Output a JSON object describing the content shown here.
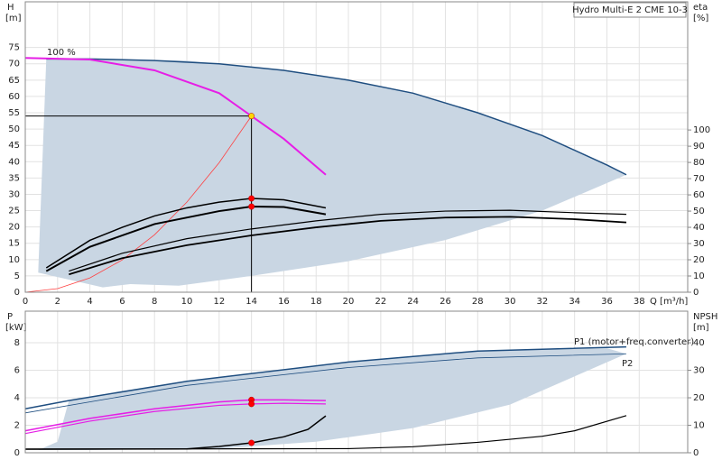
{
  "chart_data": [
    {
      "type": "line",
      "title": "Hydro Multi-E 2 CME 10-3",
      "ylabel": "H",
      "yunit": "[m]",
      "y2label": "eta",
      "y2unit": "[%]",
      "xlabel": "Q [m³/h]",
      "xlim": [
        0,
        41
      ],
      "xticks": [
        0,
        2,
        4,
        6,
        8,
        10,
        12,
        14,
        16,
        18,
        20,
        22,
        24,
        26,
        28,
        30,
        32,
        34,
        36,
        38
      ],
      "ylim": [
        0,
        89
      ],
      "yticks": [
        0,
        5,
        10,
        15,
        20,
        25,
        30,
        35,
        40,
        45,
        50,
        55,
        60,
        65,
        70,
        75
      ],
      "y2lim": [
        0,
        179
      ],
      "y2ticks": [
        0,
        10,
        20,
        30,
        40,
        50,
        60,
        70,
        80,
        90,
        100
      ],
      "grid": true,
      "annotations": [
        "100 %"
      ],
      "series": [
        {
          "type": "area",
          "color": "#c9d6e3",
          "x": [
            1.3,
            4,
            10,
            16,
            20,
            24,
            28,
            32,
            36,
            37.2,
            32,
            26,
            20,
            14,
            9.5,
            6.5,
            4.8,
            0.8
          ],
          "values": [
            71.5,
            71.5,
            71,
            68,
            65,
            61,
            55,
            48,
            39,
            36,
            25,
            16,
            9.5,
            5,
            2,
            2.5,
            1.5,
            6
          ]
        },
        {
          "type": "line",
          "color": "#1f4e80",
          "width": 1.5,
          "x": [
            1.3,
            4,
            8,
            12,
            16,
            20,
            24,
            28,
            32,
            36,
            37.2
          ],
          "values": [
            71.5,
            71.5,
            71,
            70,
            68,
            65,
            61,
            55,
            48,
            39,
            36
          ]
        },
        {
          "type": "line",
          "color": "#ff4040",
          "width": 0.8,
          "x": [
            0,
            2,
            4,
            6,
            8,
            10,
            12,
            14
          ],
          "values": [
            0,
            1.1,
            4.4,
            9.9,
            17.6,
            27.6,
            39.7,
            54
          ]
        },
        {
          "type": "line",
          "color": "#e61ee6",
          "width": 2,
          "x": [
            0,
            4,
            8,
            12,
            14,
            16,
            18.6
          ],
          "values": [
            71.8,
            71.3,
            68,
            61,
            54,
            47,
            36
          ]
        },
        {
          "type": "line",
          "color": "#000000",
          "width": 1,
          "x": [
            0,
            14,
            14
          ],
          "values": [
            54,
            54,
            0
          ]
        },
        {
          "type": "line",
          "color": "#000000",
          "width": 1.5,
          "axis": "y2",
          "x": [
            1.3,
            4,
            6,
            8,
            10,
            12,
            14,
            16,
            18.6
          ],
          "values": [
            15,
            32,
            40,
            47,
            52,
            55.5,
            57.8,
            57,
            52
          ]
        },
        {
          "type": "line",
          "color": "#000000",
          "width": 2,
          "axis": "y2",
          "x": [
            1.3,
            4,
            8,
            12,
            14,
            16,
            18.6
          ],
          "values": [
            13,
            28,
            42,
            50,
            52.8,
            52.5,
            48
          ]
        },
        {
          "type": "line",
          "color": "#000000",
          "width": 1.2,
          "axis": "y2",
          "x": [
            2.7,
            6,
            10,
            14,
            18,
            22,
            26,
            30,
            34,
            37.2
          ],
          "values": [
            13,
            24,
            33,
            39,
            44,
            48,
            50,
            50.5,
            49,
            48
          ]
        },
        {
          "type": "line",
          "color": "#000000",
          "width": 1.8,
          "axis": "y2",
          "x": [
            2.7,
            6,
            10,
            14,
            18,
            22,
            26,
            30,
            34,
            37.2
          ],
          "values": [
            11,
            21,
            29,
            35,
            40,
            44,
            46,
            46.5,
            45,
            43
          ]
        },
        {
          "type": "points",
          "color": "#ff0000",
          "axis": "y2",
          "x": [
            14,
            14
          ],
          "values": [
            57.8,
            52.8
          ]
        },
        {
          "type": "points",
          "color": "#ffd700",
          "x": [
            14
          ],
          "values": [
            54
          ]
        }
      ]
    },
    {
      "type": "line",
      "ylabel": "P",
      "yunit": "[kW]",
      "y2label": "NPSH",
      "y2unit": "[m]",
      "xlim": [
        0,
        41
      ],
      "ylim": [
        0,
        10.3
      ],
      "yticks": [
        0,
        2,
        4,
        6,
        8
      ],
      "y2lim": [
        0,
        51.5
      ],
      "y2ticks": [
        0,
        10,
        20,
        30,
        40
      ],
      "grid": true,
      "annotations": [
        "P1 (motor+freq.converter)",
        "P2"
      ],
      "series": [
        {
          "type": "area",
          "color": "#c9d6e3",
          "x": [
            2.7,
            10,
            20,
            28,
            36,
            37.2,
            30,
            24,
            18,
            12,
            4,
            0.8,
            2
          ],
          "values": [
            3.8,
            5.2,
            6.6,
            7.4,
            7.6,
            7.2,
            3.5,
            1.8,
            0.8,
            0.3,
            0.2,
            0.2,
            0.8
          ]
        },
        {
          "type": "line",
          "color": "#1f4e80",
          "width": 1.5,
          "x": [
            0,
            2.7,
            10,
            20,
            28,
            37.2
          ],
          "values": [
            3.2,
            3.8,
            5.2,
            6.6,
            7.4,
            7.7
          ]
        },
        {
          "type": "line",
          "color": "#1f4e80",
          "width": 0.8,
          "x": [
            0,
            10,
            20,
            28,
            37.2
          ],
          "values": [
            2.9,
            4.9,
            6.2,
            6.9,
            7.2
          ]
        },
        {
          "type": "line",
          "color": "#e61ee6",
          "width": 1.5,
          "x": [
            0,
            4,
            8,
            12,
            14,
            16,
            18.6
          ],
          "values": [
            1.6,
            2.5,
            3.2,
            3.7,
            3.85,
            3.85,
            3.8
          ]
        },
        {
          "type": "line",
          "color": "#e61ee6",
          "width": 1.2,
          "x": [
            0,
            4,
            8,
            12,
            14,
            16,
            18.6
          ],
          "values": [
            1.4,
            2.3,
            3.0,
            3.45,
            3.55,
            3.6,
            3.55
          ]
        },
        {
          "type": "line",
          "color": "#000000",
          "width": 1.5,
          "axis": "y2",
          "x": [
            0,
            10,
            12,
            14,
            16,
            17.5,
            18.6
          ],
          "values": [
            1.3,
            1.4,
            2.3,
            3.6,
            5.8,
            8.5,
            13.4
          ]
        },
        {
          "type": "line",
          "color": "#000000",
          "width": 1.2,
          "axis": "y2",
          "x": [
            0,
            20,
            24,
            28,
            32,
            34,
            37.2
          ],
          "values": [
            1.3,
            1.5,
            2.2,
            3.8,
            6,
            8,
            13.5
          ]
        },
        {
          "type": "points",
          "color": "#ff0000",
          "x": [
            14,
            14
          ],
          "values": [
            3.85,
            3.55
          ]
        },
        {
          "type": "points",
          "color": "#ff0000",
          "axis": "y2",
          "x": [
            14
          ],
          "values": [
            3.6
          ]
        }
      ]
    }
  ]
}
